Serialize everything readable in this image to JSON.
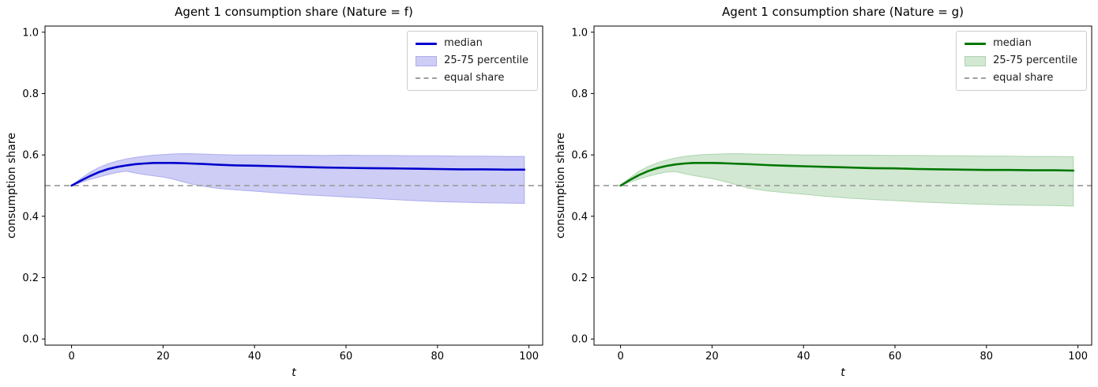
{
  "figure": {
    "background": "#ffffff"
  },
  "chart_data": [
    {
      "type": "line",
      "title": "Agent 1 consumption share (Nature = f)",
      "xlabel": "t",
      "ylabel": "consumption share",
      "xlim": [
        -5.8,
        103.0
      ],
      "ylim": [
        -0.02,
        1.02
      ],
      "xticks": [
        0,
        20,
        40,
        60,
        80,
        100
      ],
      "xtick_labels": [
        "0",
        "20",
        "40",
        "60",
        "80",
        "100"
      ],
      "yticks": [
        0.0,
        0.2,
        0.4,
        0.6,
        0.8,
        1.0
      ],
      "ytick_labels": [
        "0.0",
        "0.2",
        "0.4",
        "0.6",
        "0.8",
        "1.0"
      ],
      "grid": false,
      "legend_position": "upper right",
      "legend": {
        "median": "median",
        "band": "25-75 percentile",
        "equal": "equal share"
      },
      "colors": {
        "median": "#0000cc",
        "band_fill": "#cdcdf6",
        "band_edge": "#adadee",
        "equal": "#a0a0a0"
      },
      "equal_share": 0.5,
      "x": [
        0,
        2,
        4,
        6,
        8,
        10,
        12,
        14,
        16,
        18,
        20,
        22,
        24,
        26,
        28,
        32,
        36,
        40,
        45,
        50,
        55,
        60,
        65,
        70,
        75,
        80,
        85,
        90,
        95,
        99
      ],
      "series": [
        {
          "name": "median",
          "values": [
            0.5,
            0.516,
            0.531,
            0.544,
            0.554,
            0.561,
            0.566,
            0.57,
            0.572,
            0.574,
            0.574,
            0.574,
            0.573,
            0.572,
            0.571,
            0.568,
            0.566,
            0.565,
            0.563,
            0.561,
            0.559,
            0.558,
            0.557,
            0.556,
            0.555,
            0.554,
            0.553,
            0.553,
            0.552,
            0.552
          ]
        },
        {
          "name": "75th percentile",
          "values": [
            0.5,
            0.523,
            0.543,
            0.559,
            0.571,
            0.58,
            0.587,
            0.592,
            0.596,
            0.599,
            0.601,
            0.603,
            0.604,
            0.604,
            0.603,
            0.601,
            0.6,
            0.6,
            0.599,
            0.599,
            0.598,
            0.599,
            0.598,
            0.598,
            0.597,
            0.597,
            0.596,
            0.596,
            0.595,
            0.595
          ]
        },
        {
          "name": "25th percentile",
          "values": [
            0.5,
            0.51,
            0.52,
            0.528,
            0.536,
            0.543,
            0.547,
            0.541,
            0.536,
            0.532,
            0.528,
            0.522,
            0.514,
            0.506,
            0.5,
            0.491,
            0.486,
            0.482,
            0.476,
            0.471,
            0.467,
            0.463,
            0.459,
            0.455,
            0.451,
            0.448,
            0.446,
            0.444,
            0.443,
            0.442
          ]
        }
      ]
    },
    {
      "type": "line",
      "title": "Agent 1 consumption share (Nature = g)",
      "xlabel": "t",
      "ylabel": "consumption share",
      "xlim": [
        -5.8,
        103.0
      ],
      "ylim": [
        -0.02,
        1.02
      ],
      "xticks": [
        0,
        20,
        40,
        60,
        80,
        100
      ],
      "xtick_labels": [
        "0",
        "20",
        "40",
        "60",
        "80",
        "100"
      ],
      "yticks": [
        0.0,
        0.2,
        0.4,
        0.6,
        0.8,
        1.0
      ],
      "ytick_labels": [
        "0.0",
        "0.2",
        "0.4",
        "0.6",
        "0.8",
        "1.0"
      ],
      "grid": false,
      "legend_position": "upper right",
      "legend": {
        "median": "median",
        "band": "25-75 percentile",
        "equal": "equal share"
      },
      "colors": {
        "median": "#007700",
        "band_fill": "#d2e8d2",
        "band_edge": "#aed4ae",
        "equal": "#a0a0a0"
      },
      "equal_share": 0.5,
      "x": [
        0,
        2,
        4,
        6,
        8,
        10,
        12,
        14,
        16,
        18,
        20,
        22,
        24,
        26,
        28,
        32,
        36,
        40,
        45,
        50,
        55,
        60,
        65,
        70,
        75,
        80,
        85,
        90,
        95,
        99
      ],
      "series": [
        {
          "name": "median",
          "values": [
            0.5,
            0.518,
            0.534,
            0.547,
            0.557,
            0.564,
            0.569,
            0.572,
            0.574,
            0.574,
            0.574,
            0.573,
            0.572,
            0.571,
            0.57,
            0.567,
            0.565,
            0.563,
            0.561,
            0.559,
            0.557,
            0.556,
            0.554,
            0.553,
            0.552,
            0.551,
            0.551,
            0.55,
            0.55,
            0.549
          ]
        },
        {
          "name": "75th percentile",
          "values": [
            0.5,
            0.525,
            0.546,
            0.562,
            0.574,
            0.583,
            0.59,
            0.595,
            0.598,
            0.601,
            0.602,
            0.603,
            0.604,
            0.604,
            0.603,
            0.602,
            0.601,
            0.6,
            0.6,
            0.599,
            0.599,
            0.598,
            0.598,
            0.597,
            0.597,
            0.596,
            0.596,
            0.595,
            0.595,
            0.594
          ]
        },
        {
          "name": "25th percentile",
          "values": [
            0.5,
            0.511,
            0.521,
            0.53,
            0.538,
            0.544,
            0.546,
            0.539,
            0.533,
            0.528,
            0.523,
            0.516,
            0.508,
            0.5,
            0.492,
            0.483,
            0.477,
            0.472,
            0.465,
            0.459,
            0.455,
            0.451,
            0.447,
            0.444,
            0.441,
            0.439,
            0.437,
            0.436,
            0.435,
            0.433
          ]
        }
      ]
    }
  ]
}
